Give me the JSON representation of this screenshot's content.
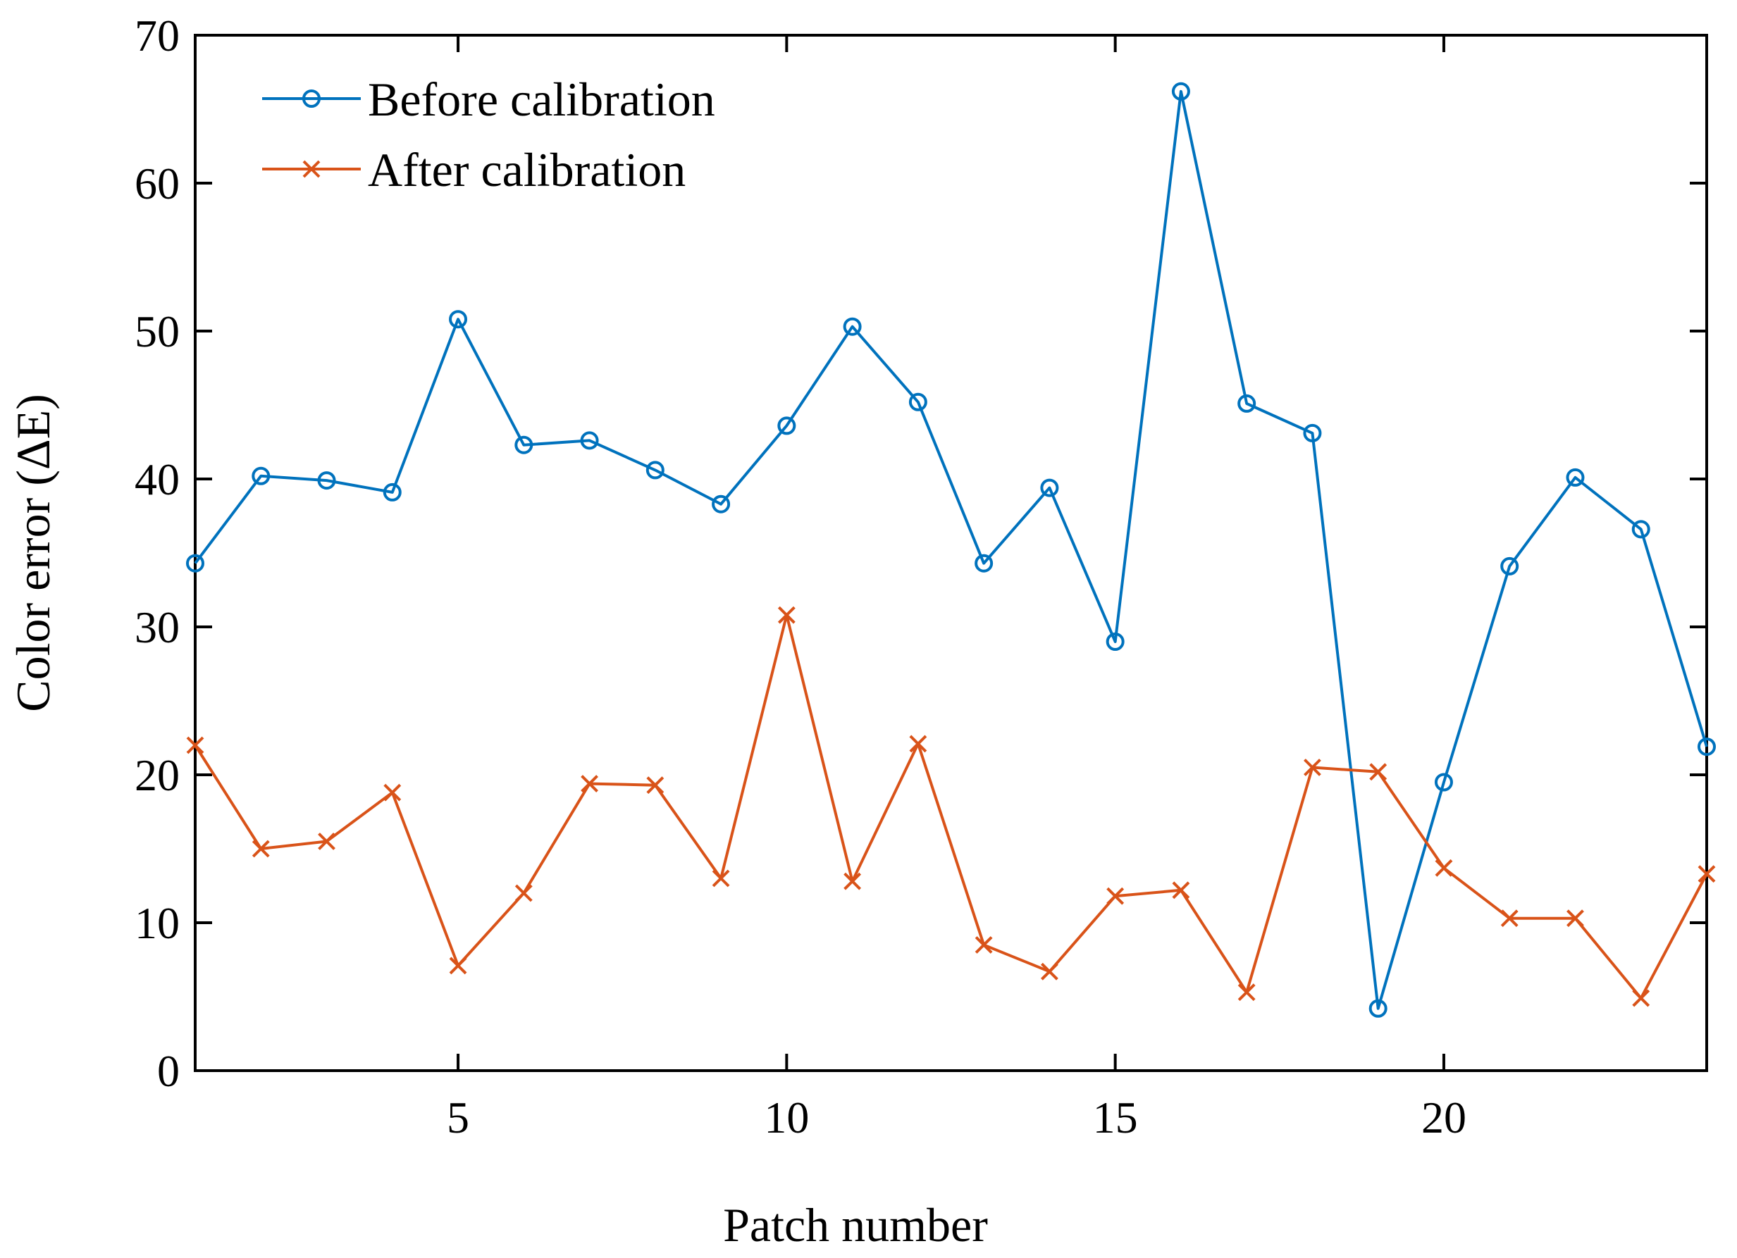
{
  "chart_data": {
    "type": "line",
    "title": "",
    "xlabel": "Patch number",
    "ylabel": "Color error (ΔE)",
    "xlim": [
      1,
      24
    ],
    "ylim": [
      0,
      70
    ],
    "xticks": [
      5,
      10,
      15,
      20
    ],
    "xtick_labels": [
      "5",
      "10",
      "15",
      "20"
    ],
    "yticks": [
      0,
      10,
      20,
      30,
      40,
      50,
      60,
      70
    ],
    "ytick_labels": [
      "0",
      "10",
      "20",
      "30",
      "40",
      "50",
      "60",
      "70"
    ],
    "grid": false,
    "legend_position": "top-left",
    "x": [
      1,
      2,
      3,
      4,
      5,
      6,
      7,
      8,
      9,
      10,
      11,
      12,
      13,
      14,
      15,
      16,
      17,
      18,
      19,
      20,
      21,
      22,
      23,
      24
    ],
    "series": [
      {
        "name": "Before calibration",
        "color": "#0072BD",
        "marker": "circle",
        "values": [
          34.3,
          40.2,
          39.9,
          39.1,
          50.8,
          42.3,
          42.6,
          40.6,
          38.3,
          43.6,
          50.3,
          45.2,
          34.3,
          39.4,
          29.0,
          66.2,
          45.1,
          43.1,
          4.2,
          19.5,
          34.1,
          40.1,
          36.6,
          21.9
        ]
      },
      {
        "name": "After calibration",
        "color": "#D95319",
        "marker": "x",
        "values": [
          22.0,
          15.0,
          15.5,
          18.8,
          7.1,
          12.0,
          19.4,
          19.3,
          13.0,
          30.8,
          12.8,
          22.1,
          8.5,
          6.7,
          11.8,
          12.2,
          5.3,
          20.5,
          20.2,
          13.7,
          10.3,
          10.3,
          4.9,
          13.3
        ]
      }
    ]
  }
}
